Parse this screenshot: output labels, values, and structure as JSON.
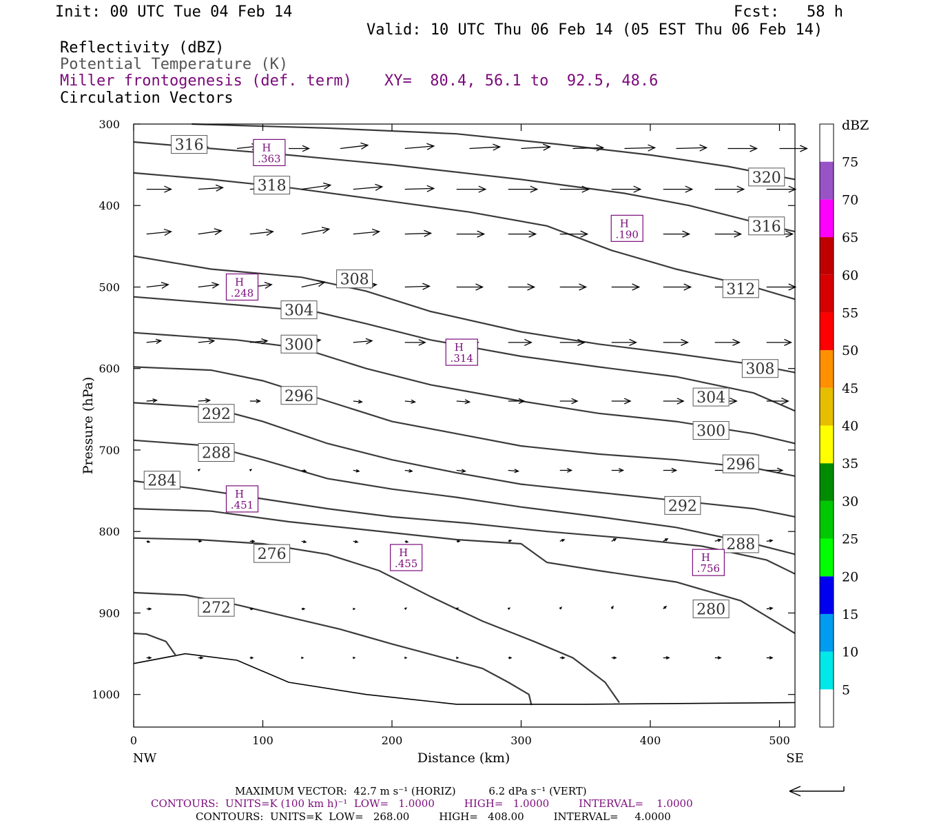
{
  "header": {
    "init": "Init: 00 UTC Tue 04 Feb 14",
    "fcst": "Fcst:   58 h",
    "valid": "Valid: 10 UTC Thu 06 Feb 14 (05 EST Thu 06 Feb 14)",
    "field1": "Reflectivity (dBZ)",
    "field2": "Potential Temperature (K)",
    "field3": "Miller frontogenesis (def. term)",
    "xy": "XY=  80.4, 56.1 to  92.5, 48.6",
    "field4": "Circulation Vectors"
  },
  "chart_data": {
    "type": "line",
    "title": "",
    "xlabel": "Distance (km)",
    "ylabel": "Pressure (hPa)",
    "xlim": [
      0,
      512
    ],
    "ylim": [
      1040,
      300
    ],
    "x_ticks": [
      0,
      100,
      200,
      300,
      400,
      500
    ],
    "y_ticks": [
      300,
      400,
      500,
      600,
      700,
      800,
      900,
      1000
    ],
    "x_end_labels": {
      "left": "NW",
      "right": "SE"
    },
    "contour_color": "#3a3a3a",
    "high_color": "#7a0a7a",
    "isentropes": [
      {
        "name": "272",
        "points": [
          [
            0,
            875
          ],
          [
            40,
            878
          ],
          [
            80,
            890
          ],
          [
            120,
            905
          ],
          [
            160,
            920
          ],
          [
            200,
            938
          ],
          [
            240,
            955
          ],
          [
            270,
            968
          ],
          [
            290,
            985
          ],
          [
            306,
            1000
          ],
          [
            308,
            1013
          ]
        ]
      },
      {
        "name": "276",
        "points": [
          [
            0,
            808
          ],
          [
            50,
            810
          ],
          [
            100,
            815
          ],
          [
            150,
            828
          ],
          [
            190,
            848
          ],
          [
            230,
            880
          ],
          [
            270,
            910
          ],
          [
            310,
            935
          ],
          [
            340,
            955
          ],
          [
            365,
            985
          ],
          [
            376,
            1010
          ]
        ]
      },
      {
        "name": "280",
        "points": [
          [
            0,
            772
          ],
          [
            60,
            775
          ],
          [
            120,
            788
          ],
          [
            180,
            798
          ],
          [
            250,
            810
          ],
          [
            300,
            815
          ],
          [
            320,
            838
          ],
          [
            360,
            848
          ],
          [
            420,
            862
          ],
          [
            470,
            885
          ],
          [
            512,
            925
          ]
        ]
      },
      {
        "name": "284",
        "points": [
          [
            0,
            738
          ],
          [
            50,
            748
          ],
          [
            100,
            760
          ],
          [
            150,
            772
          ],
          [
            200,
            782
          ],
          [
            260,
            790
          ],
          [
            320,
            800
          ],
          [
            380,
            808
          ],
          [
            440,
            818
          ],
          [
            490,
            835
          ],
          [
            512,
            852
          ]
        ]
      },
      {
        "name": "288",
        "points": [
          [
            0,
            688
          ],
          [
            60,
            695
          ],
          [
            100,
            712
          ],
          [
            150,
            735
          ],
          [
            200,
            748
          ],
          [
            250,
            758
          ],
          [
            300,
            770
          ],
          [
            360,
            782
          ],
          [
            420,
            795
          ],
          [
            480,
            815
          ],
          [
            512,
            828
          ]
        ]
      },
      {
        "name": "292",
        "points": [
          [
            0,
            642
          ],
          [
            60,
            648
          ],
          [
            100,
            665
          ],
          [
            150,
            692
          ],
          [
            200,
            712
          ],
          [
            250,
            728
          ],
          [
            300,
            742
          ],
          [
            360,
            752
          ],
          [
            420,
            762
          ],
          [
            480,
            772
          ],
          [
            512,
            782
          ]
        ]
      },
      {
        "name": "296",
        "points": [
          [
            0,
            598
          ],
          [
            60,
            602
          ],
          [
            100,
            615
          ],
          [
            150,
            640
          ],
          [
            200,
            665
          ],
          [
            250,
            680
          ],
          [
            300,
            695
          ],
          [
            360,
            705
          ],
          [
            420,
            712
          ],
          [
            480,
            722
          ],
          [
            512,
            732
          ]
        ]
      },
      {
        "name": "300",
        "points": [
          [
            0,
            556
          ],
          [
            80,
            565
          ],
          [
            130,
            575
          ],
          [
            180,
            600
          ],
          [
            230,
            620
          ],
          [
            300,
            640
          ],
          [
            360,
            655
          ],
          [
            420,
            665
          ],
          [
            480,
            680
          ],
          [
            512,
            692
          ]
        ]
      },
      {
        "name": "304",
        "points": [
          [
            0,
            512
          ],
          [
            80,
            522
          ],
          [
            140,
            530
          ],
          [
            180,
            545
          ],
          [
            230,
            565
          ],
          [
            300,
            585
          ],
          [
            360,
            598
          ],
          [
            420,
            610
          ],
          [
            480,
            630
          ],
          [
            512,
            652
          ]
        ]
      },
      {
        "name": "308",
        "points": [
          [
            0,
            462
          ],
          [
            60,
            478
          ],
          [
            130,
            488
          ],
          [
            180,
            505
          ],
          [
            230,
            530
          ],
          [
            300,
            555
          ],
          [
            360,
            570
          ],
          [
            420,
            582
          ],
          [
            480,
            595
          ],
          [
            512,
            605
          ]
        ]
      },
      {
        "name": "312",
        "points": [
          [
            0,
            360
          ],
          [
            60,
            368
          ],
          [
            120,
            378
          ],
          [
            200,
            395
          ],
          [
            260,
            408
          ],
          [
            320,
            425
          ],
          [
            370,
            455
          ],
          [
            420,
            478
          ],
          [
            480,
            500
          ],
          [
            512,
            515
          ]
        ]
      },
      {
        "name": "316",
        "points": [
          [
            0,
            322
          ],
          [
            60,
            330
          ],
          [
            120,
            338
          ],
          [
            200,
            350
          ],
          [
            300,
            368
          ],
          [
            380,
            385
          ],
          [
            430,
            400
          ],
          [
            480,
            420
          ],
          [
            512,
            432
          ]
        ]
      },
      {
        "name": "320",
        "points": [
          [
            45,
            300
          ],
          [
            150,
            305
          ],
          [
            250,
            312
          ],
          [
            330,
            325
          ],
          [
            400,
            338
          ],
          [
            460,
            352
          ],
          [
            512,
            368
          ]
        ]
      },
      {
        "name": "ground",
        "points": [
          [
            0,
            962
          ],
          [
            40,
            950
          ],
          [
            80,
            958
          ],
          [
            120,
            985
          ],
          [
            180,
            1000
          ],
          [
            250,
            1012
          ],
          [
            350,
            1012
          ],
          [
            512,
            1010
          ]
        ]
      },
      {
        "name": "",
        "points": [
          [
            0,
            925
          ],
          [
            10,
            926
          ],
          [
            25,
            935
          ],
          [
            33,
            953
          ]
        ]
      }
    ],
    "contour_labels": [
      {
        "text": "316",
        "x": 43,
        "y": 325
      },
      {
        "text": "318",
        "x": 107,
        "y": 375
      },
      {
        "text": "320",
        "x": 490,
        "y": 365
      },
      {
        "text": "316",
        "x": 490,
        "y": 425
      },
      {
        "text": "312",
        "x": 470,
        "y": 502
      },
      {
        "text": "308",
        "x": 171,
        "y": 490
      },
      {
        "text": "304",
        "x": 128,
        "y": 528
      },
      {
        "text": "300",
        "x": 128,
        "y": 570
      },
      {
        "text": "296",
        "x": 128,
        "y": 633
      },
      {
        "text": "292",
        "x": 64,
        "y": 655
      },
      {
        "text": "288",
        "x": 64,
        "y": 703
      },
      {
        "text": "284",
        "x": 22,
        "y": 737
      },
      {
        "text": "276",
        "x": 107,
        "y": 827
      },
      {
        "text": "272",
        "x": 64,
        "y": 893
      },
      {
        "text": "308",
        "x": 485,
        "y": 600
      },
      {
        "text": "304",
        "x": 447,
        "y": 635
      },
      {
        "text": "300",
        "x": 447,
        "y": 676
      },
      {
        "text": "296",
        "x": 470,
        "y": 717
      },
      {
        "text": "292",
        "x": 425,
        "y": 768
      },
      {
        "text": "288",
        "x": 470,
        "y": 815
      },
      {
        "text": "280",
        "x": 447,
        "y": 895
      }
    ],
    "highs": [
      {
        "label": "H",
        "value": ".363",
        "x": 105,
        "y": 335
      },
      {
        "label": "H",
        "value": ".190",
        "x": 382,
        "y": 428
      },
      {
        "label": "H",
        "value": ".248",
        "x": 84,
        "y": 500
      },
      {
        "label": "H",
        "value": ".314",
        "x": 254,
        "y": 580
      },
      {
        "label": "H",
        "value": ".451",
        "x": 84,
        "y": 760
      },
      {
        "label": "H",
        "value": ".455",
        "x": 211,
        "y": 832
      },
      {
        "label": "H",
        "value": ".756",
        "x": 445,
        "y": 838
      }
    ],
    "vector_rows": [
      {
        "p": 330,
        "xs": [
          35,
          80,
          120,
          160,
          210,
          260,
          300,
          340,
          380,
          420,
          460,
          500
        ],
        "u": [
          40,
          30,
          28,
          38,
          40,
          42,
          40,
          42,
          42,
          42,
          40,
          38
        ],
        "v": [
          -2,
          -3,
          0,
          -4,
          -3,
          -2,
          -2,
          -1,
          -1,
          -1,
          0,
          0
        ]
      },
      {
        "p": 380,
        "xs": [
          10,
          50,
          90,
          130,
          170,
          210,
          250,
          290,
          330,
          370,
          410,
          450,
          490
        ],
        "u": [
          34,
          34,
          38,
          40,
          40,
          40,
          40,
          40,
          40,
          40,
          40,
          40,
          40
        ],
        "v": [
          0,
          -2,
          -2,
          -5,
          -3,
          -1,
          0,
          0,
          0,
          0,
          0,
          0,
          0
        ]
      },
      {
        "p": 435,
        "xs": [
          10,
          50,
          90,
          130,
          170,
          210,
          250,
          290,
          330,
          370,
          410,
          450,
          490
        ],
        "u": [
          34,
          32,
          32,
          38,
          36,
          36,
          38,
          38,
          38,
          38,
          36,
          36,
          36
        ],
        "v": [
          -3,
          -4,
          -3,
          -6,
          -3,
          -1,
          0,
          0,
          0,
          0,
          0,
          0,
          0
        ]
      },
      {
        "p": 500,
        "xs": [
          10,
          50,
          90,
          130,
          170,
          210,
          250,
          290,
          330,
          370,
          410,
          450,
          490
        ],
        "u": [
          30,
          28,
          30,
          32,
          32,
          34,
          36,
          36,
          36,
          38,
          38,
          38,
          40
        ],
        "v": [
          -3,
          -3,
          -3,
          -6,
          -3,
          -1,
          0,
          0,
          0,
          0,
          0,
          0,
          0
        ]
      },
      {
        "p": 568,
        "xs": [
          10,
          50,
          90,
          130,
          170,
          210,
          250,
          290,
          330,
          370,
          410,
          450,
          490
        ],
        "u": [
          20,
          22,
          24,
          26,
          26,
          28,
          30,
          32,
          34,
          34,
          34,
          34,
          34
        ],
        "v": [
          -2,
          -2,
          -2,
          -3,
          -2,
          0,
          0,
          0,
          0,
          0,
          0,
          0,
          0
        ]
      },
      {
        "p": 640,
        "xs": [
          10,
          50,
          90,
          130,
          170,
          210,
          250,
          290,
          330,
          370,
          410,
          450,
          490
        ],
        "u": [
          14,
          16,
          14,
          12,
          12,
          14,
          18,
          22,
          24,
          26,
          28,
          30,
          30
        ],
        "v": [
          -1,
          -1,
          0,
          1,
          1,
          1,
          1,
          0,
          0,
          0,
          0,
          0,
          0
        ]
      },
      {
        "p": 725,
        "xs": [
          50,
          90,
          130,
          170,
          210,
          250,
          290,
          330,
          370,
          410,
          450,
          490
        ],
        "u": [
          2,
          2,
          6,
          8,
          10,
          12,
          14,
          16,
          16,
          18,
          20,
          22
        ],
        "v": [
          -1,
          -1,
          1,
          1,
          1,
          1,
          1,
          0,
          0,
          0,
          0,
          0
        ]
      },
      {
        "p": 812,
        "xs": [
          10,
          50,
          90,
          130,
          170,
          210,
          250,
          290,
          330,
          370,
          410,
          450,
          490
        ],
        "u": [
          4,
          4,
          6,
          6,
          6,
          4,
          4,
          4,
          6,
          6,
          6,
          8,
          8
        ],
        "v": [
          1,
          0,
          0,
          1,
          1,
          1,
          0,
          -1,
          -2,
          -3,
          -3,
          -2,
          -1
        ]
      },
      {
        "p": 895,
        "xs": [
          10,
          50,
          90,
          130,
          170,
          210,
          250,
          290,
          330,
          370,
          410,
          450,
          490
        ],
        "u": [
          6,
          4,
          4,
          4,
          2,
          2,
          2,
          2,
          2,
          2,
          4,
          6,
          8
        ],
        "v": [
          0,
          0,
          0,
          0,
          0,
          -1,
          -1,
          -1,
          -2,
          -3,
          -3,
          -2,
          -1
        ]
      },
      {
        "p": 955,
        "xs": [
          10,
          50,
          90,
          130,
          170,
          210,
          250,
          290,
          330,
          370,
          410,
          450,
          490
        ],
        "u": [
          6,
          6,
          4,
          2,
          2,
          2,
          2,
          4,
          6,
          6,
          8,
          8,
          8
        ],
        "v": [
          0,
          0,
          0,
          0,
          0,
          0,
          0,
          0,
          0,
          0,
          0,
          0,
          0
        ]
      }
    ],
    "colorbar": {
      "unit": "dBZ",
      "levels": [
        5,
        10,
        15,
        20,
        25,
        30,
        35,
        40,
        45,
        50,
        55,
        60,
        65,
        70,
        75
      ],
      "colors": [
        "#00e8e8",
        "#009cf0",
        "#0000f0",
        "#00ff00",
        "#00c800",
        "#008c00",
        "#ffff00",
        "#e6be00",
        "#ff9000",
        "#ff0000",
        "#d60000",
        "#c00000",
        "#ff00ff",
        "#9854c6"
      ]
    }
  },
  "footer": {
    "line1": "MAXIMUM VECTOR:  42.7 m s⁻¹ (HORIZ)          6.2 dPa s⁻¹ (VERT)",
    "line2": "CONTOURS:  UNITS=K (100 km h)⁻¹  LOW=   1.0000         HIGH=   1.0000         INTERVAL=    1.0000",
    "line3": "CONTOURS:  UNITS=K  LOW=   268.00         HIGH=   408.00         INTERVAL=     4.0000"
  }
}
